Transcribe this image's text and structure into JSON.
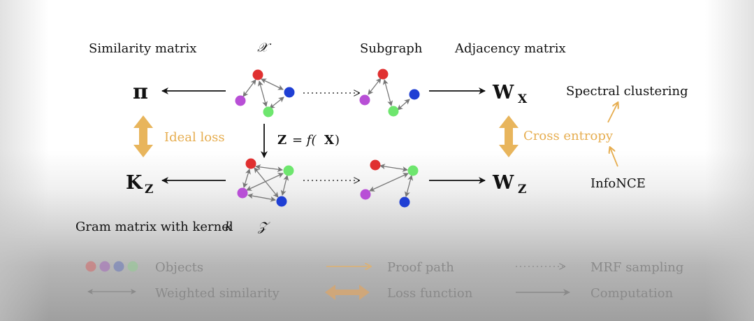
{
  "labels": {
    "similarity_matrix": "Similarity matrix",
    "x_space": "𝒳",
    "subgraph": "Subgraph",
    "adjacency_matrix": "Adjacency matrix",
    "pi": "π",
    "w_x_main": "W",
    "w_x_sub": "X",
    "spectral_clustering": "Spectral clustering",
    "ideal_loss": "Ideal loss",
    "z_eq_main": "Z",
    "z_eq_rest": "= f(",
    "z_eq_x": "X",
    "z_eq_close": ")",
    "cross_entropy": "Cross entropy",
    "k_z_main": "K",
    "k_z_sub": "Z",
    "w_z_main": "W",
    "w_z_sub": "Z",
    "infonce": "InfoNCE",
    "gram_matrix": "Gram matrix with kernel",
    "kernel_k": "k",
    "z_space": "𝒵"
  },
  "legend": {
    "objects": "Objects",
    "weighted_similarity": "Weighted similarity",
    "proof_path": "Proof path",
    "loss_function": "Loss function",
    "mrf_sampling": "MRF sampling",
    "computation": "Computation"
  },
  "colors": {
    "red": "#e03030",
    "purple": "#b84fd6",
    "blue": "#1f3fd4",
    "green": "#6ee66e",
    "orange": "#e6ad4f",
    "arrow": "#111111",
    "edge": "#777777"
  }
}
